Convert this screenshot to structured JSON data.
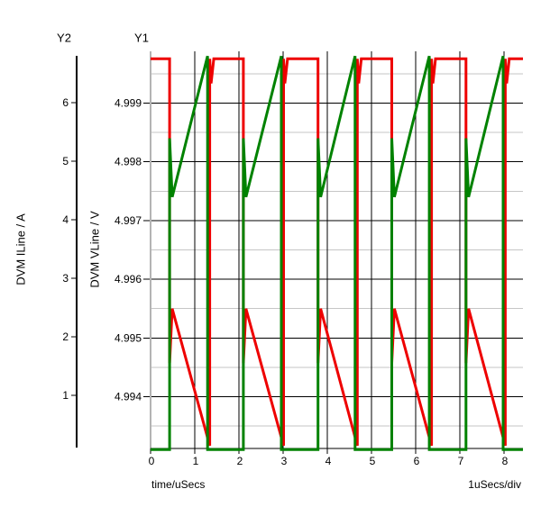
{
  "chart_data": {
    "type": "line",
    "title": "",
    "x_axis": {
      "label": "time/uSecs",
      "scale_note": "1uSecs/div",
      "tick_labels": [
        "0",
        "1",
        "2",
        "3",
        "4",
        "5",
        "6",
        "7",
        "8"
      ],
      "tick_values": [
        0,
        1,
        2,
        3,
        4,
        5,
        6,
        7,
        8
      ],
      "range": [
        0,
        8.43
      ]
    },
    "y1_axis": {
      "name": "Y1",
      "title": "DVM VLine / V",
      "tick_labels": [
        "4.994",
        "4.995",
        "4.996",
        "4.997",
        "4.998",
        "4.999"
      ],
      "tick_values": [
        4.994,
        4.995,
        4.996,
        4.997,
        4.998,
        4.999
      ],
      "minor_tick_values": [
        4.9935,
        4.9945,
        4.9955,
        4.9965,
        4.9975,
        4.9985,
        4.9995
      ],
      "range": [
        4.99312,
        4.99988
      ]
    },
    "y2_axis": {
      "name": "Y2",
      "title": "DVM ILine / A",
      "tick_labels": [
        "1",
        "2",
        "3",
        "4",
        "5",
        "6"
      ],
      "tick_values": [
        1,
        2,
        3,
        4,
        5,
        6
      ],
      "range": [
        0.092,
        6.877
      ]
    },
    "grid": {
      "major_color": "#000000",
      "minor_color": "#c6c6c6",
      "axis_edge_color": "#b4b4b4",
      "legend": "none"
    },
    "series": [
      {
        "name": "DVM ILine",
        "axis": "y2",
        "color": "#ee0000",
        "points": [
          [
            0,
            6.75
          ],
          [
            0.43,
            6.75
          ],
          [
            0.43,
            1.55
          ],
          [
            0.49,
            2.48
          ],
          [
            1.34,
            0.14
          ],
          [
            1.34,
            6.75
          ],
          [
            1.37,
            6.33
          ],
          [
            1.43,
            6.75
          ],
          [
            2.1,
            6.75
          ],
          [
            2.1,
            1.55
          ],
          [
            2.16,
            2.48
          ],
          [
            3.01,
            0.14
          ],
          [
            3.01,
            6.75
          ],
          [
            3.04,
            6.33
          ],
          [
            3.1,
            6.75
          ],
          [
            3.79,
            6.75
          ],
          [
            3.79,
            1.55
          ],
          [
            3.85,
            2.48
          ],
          [
            4.68,
            0.14
          ],
          [
            4.68,
            6.75
          ],
          [
            4.71,
            6.33
          ],
          [
            4.77,
            6.75
          ],
          [
            5.46,
            6.75
          ],
          [
            5.46,
            1.55
          ],
          [
            5.52,
            2.48
          ],
          [
            6.36,
            0.14
          ],
          [
            6.36,
            6.75
          ],
          [
            6.39,
            6.33
          ],
          [
            6.45,
            6.75
          ],
          [
            7.14,
            6.75
          ],
          [
            7.14,
            1.55
          ],
          [
            7.2,
            2.48
          ],
          [
            8.03,
            0.14
          ],
          [
            8.03,
            6.75
          ],
          [
            8.06,
            6.33
          ],
          [
            8.12,
            6.75
          ],
          [
            8.43,
            6.75
          ]
        ]
      },
      {
        "name": "DVM VLine",
        "axis": "y1",
        "color": "#008200",
        "points": [
          [
            0,
            4.9931
          ],
          [
            0.43,
            4.9931
          ],
          [
            0.43,
            4.9984
          ],
          [
            0.49,
            4.9974
          ],
          [
            1.29,
            4.9998
          ],
          [
            1.29,
            4.9931
          ],
          [
            2.1,
            4.9931
          ],
          [
            2.1,
            4.9984
          ],
          [
            2.16,
            4.9974
          ],
          [
            2.96,
            4.9998
          ],
          [
            2.96,
            4.9931
          ],
          [
            3.79,
            4.9931
          ],
          [
            3.79,
            4.9984
          ],
          [
            3.85,
            4.9974
          ],
          [
            4.63,
            4.9998
          ],
          [
            4.63,
            4.9931
          ],
          [
            5.46,
            4.9931
          ],
          [
            5.46,
            4.9984
          ],
          [
            5.52,
            4.9974
          ],
          [
            6.31,
            4.9998
          ],
          [
            6.31,
            4.9931
          ],
          [
            7.14,
            4.9931
          ],
          [
            7.14,
            4.9984
          ],
          [
            7.2,
            4.9974
          ],
          [
            7.98,
            4.9998
          ],
          [
            7.98,
            4.9931
          ],
          [
            8.43,
            4.9931
          ]
        ]
      }
    ]
  }
}
